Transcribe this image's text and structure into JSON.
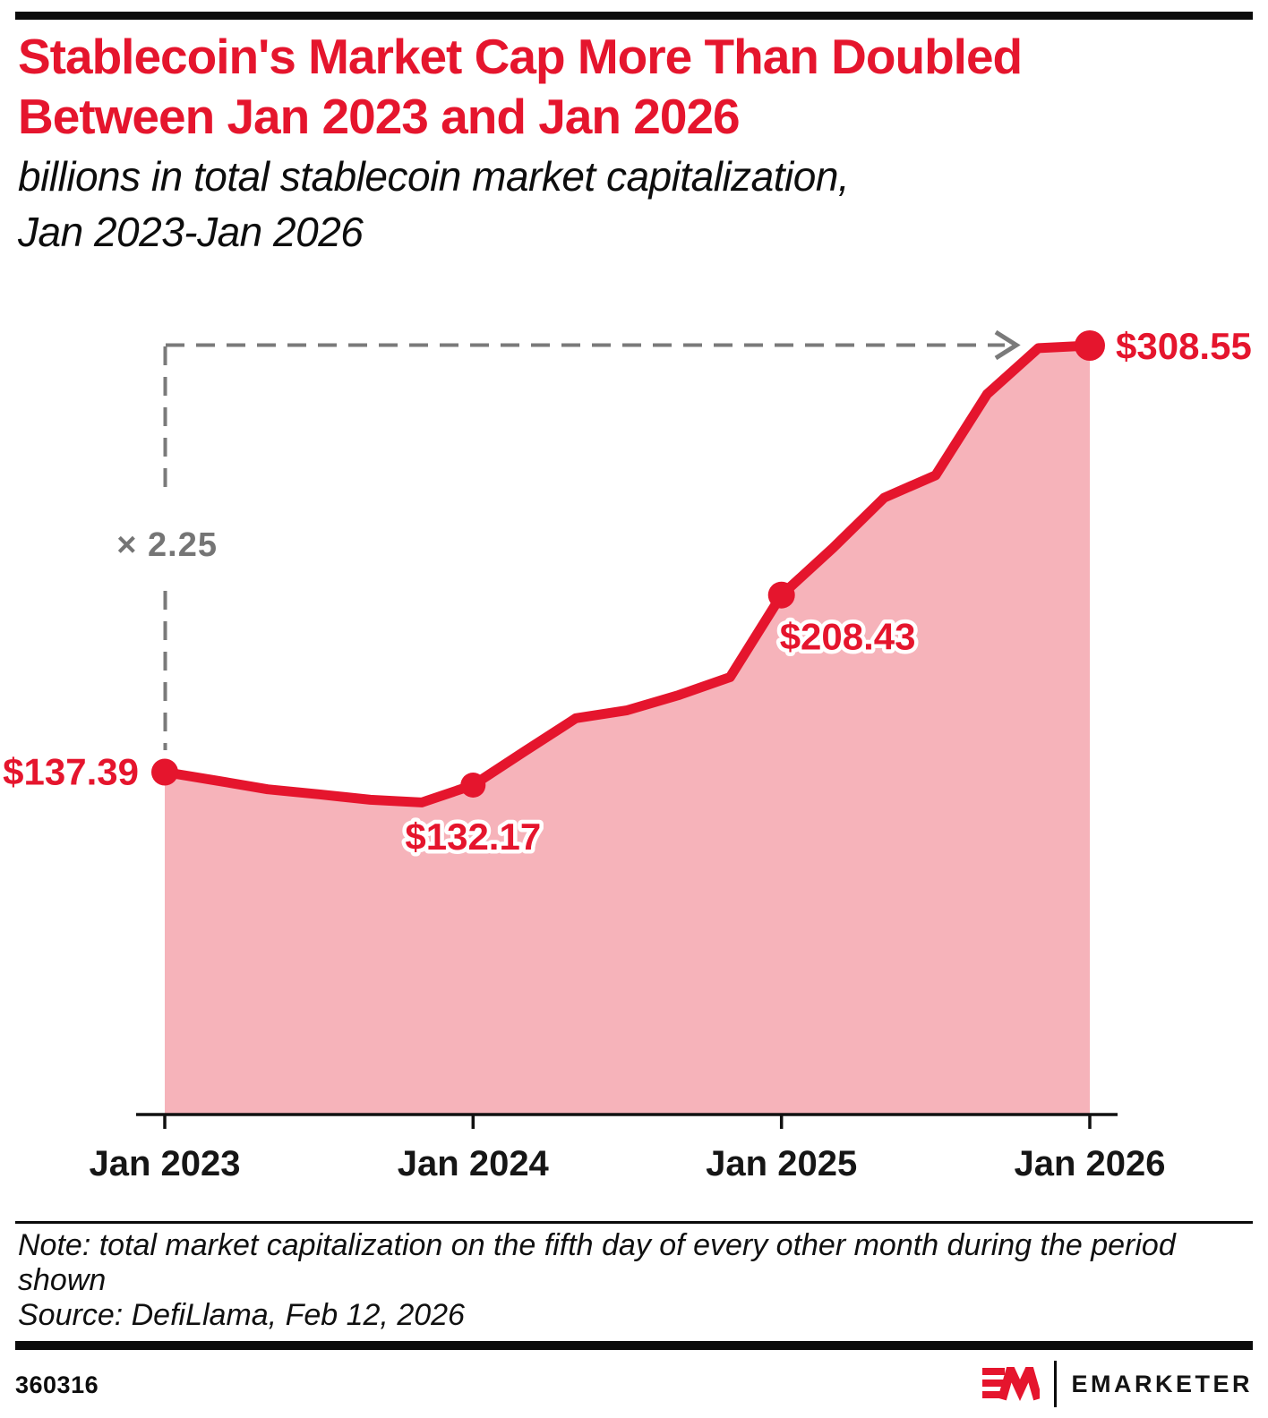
{
  "header": {
    "title_line1": "Stablecoin's Market Cap More Than Doubled",
    "title_line2": "Between Jan 2023 and Jan 2026",
    "subtitle_line1": "billions in total stablecoin market capitalization,",
    "subtitle_line2": "Jan 2023-Jan 2026"
  },
  "chart_data": {
    "type": "area",
    "title": "billions in total stablecoin market capitalization, Jan 2023-Jan 2026",
    "x": [
      "Jan 2023",
      "Mar 2023",
      "May 2023",
      "Jul 2023",
      "Sep 2023",
      "Nov 2023",
      "Jan 2024",
      "Mar 2024",
      "May 2024",
      "Jul 2024",
      "Sep 2024",
      "Nov 2024",
      "Jan 2025",
      "Mar 2025",
      "May 2025",
      "Jul 2025",
      "Sep 2025",
      "Nov 2025",
      "Jan 2026"
    ],
    "series": [
      {
        "name": "Total stablecoin market capitalization ($B)",
        "values": [
          137.39,
          134.0,
          130.5,
          128.5,
          126.3,
          125.2,
          132.17,
          145.7,
          159.0,
          162.2,
          168.3,
          175.5,
          208.43,
          227.3,
          247.5,
          256.5,
          289.0,
          307.5,
          308.55
        ]
      }
    ],
    "labeled_points": [
      {
        "x": "Jan 2023",
        "value": 137.39,
        "label": "$137.39"
      },
      {
        "x": "Jan 2024",
        "value": 132.17,
        "label": "$132.17"
      },
      {
        "x": "Jan 2025",
        "value": 208.43,
        "label": "$208.43"
      },
      {
        "x": "Jan 2026",
        "value": 308.55,
        "label": "$308.55"
      }
    ],
    "annotation": {
      "multiplier": "× 2.25"
    },
    "x_ticks": [
      "Jan 2023",
      "Jan 2024",
      "Jan 2025",
      "Jan 2026"
    ],
    "ylim": [
      0,
      330
    ],
    "grid": false,
    "legend": "none",
    "colors": {
      "line": "#e5152d",
      "fill": "#f6b3ba",
      "dashed": "#7a7a7a",
      "axis": "#111111"
    }
  },
  "footnote": {
    "note": "Note: total market capitalization on the fifth day of every other month during the period shown",
    "source": "Source: DefiLlama, Feb 12, 2026"
  },
  "footer": {
    "chart_id": "360316",
    "brand": "EMARKETER"
  }
}
